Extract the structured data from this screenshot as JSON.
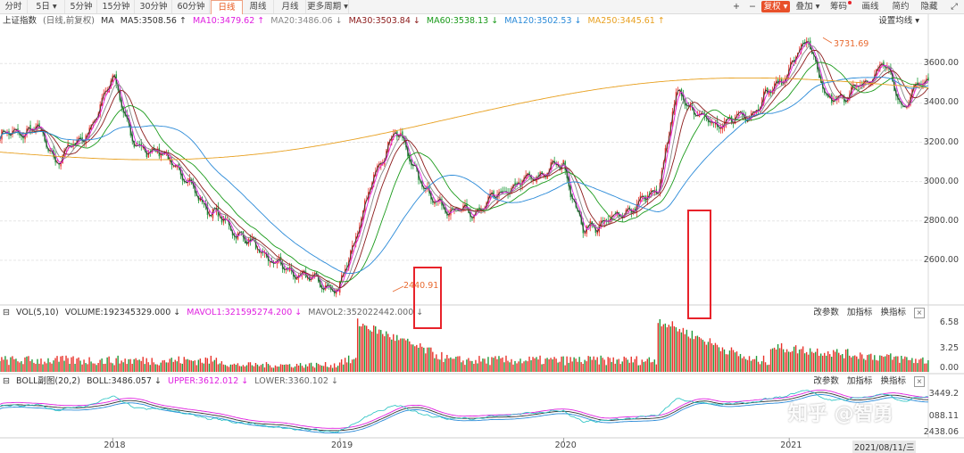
{
  "toolbar": {
    "periods": [
      "分时",
      "5日",
      "5分钟",
      "15分钟",
      "30分钟",
      "60分钟",
      "日线",
      "周线",
      "月线",
      "更多周期"
    ],
    "active_period": "日线",
    "zoom_in": "+",
    "zoom_out": "−",
    "fuquan": "复权",
    "overlay": "叠加",
    "chips": "筹码",
    "draw": "画线",
    "simple": "简约",
    "hide": "隐藏",
    "expand_icon": "expand-icon"
  },
  "ma_bar": {
    "index_name": "上证指数",
    "mode": "(日线,前复权)",
    "ma_label": "MA",
    "ma5": "MA5:3508.56",
    "ma10": "MA10:3479.62",
    "ma20": "MA20:3486.06",
    "ma30": "MA30:3503.84",
    "ma60": "MA60:3538.13",
    "ma120": "MA120:3502.53",
    "ma250": "MA250:3445.61",
    "settings": "设置均线",
    "colors": {
      "ma5": "#333333",
      "ma10": "#e020e0",
      "ma20": "#888888",
      "ma30": "#8b1a1a",
      "ma60": "#1a9a1a",
      "ma120": "#2a8ad8",
      "ma250": "#e8a020"
    }
  },
  "vol_bar": {
    "name": "VOL(5,10)",
    "volume": "VOLUME:192345329.000",
    "mavol1": "MAVOL1:321595274.200",
    "mavol2": "MAVOL2:352022442.000",
    "change_param": "改参数",
    "add_indicator": "加指标",
    "switch_indicator": "换指标",
    "close": "×"
  },
  "boll_bar": {
    "name": "BOLL副图(20,2)",
    "boll": "BOLL:3486.057",
    "upper": "UPPER:3612.012",
    "lower": "LOWER:3360.102",
    "change_param": "改参数",
    "add_indicator": "加指标",
    "switch_indicator": "换指标",
    "close": "×"
  },
  "axes": {
    "main_y": [
      "3600.00",
      "3400.00",
      "3200.00",
      "3000.00",
      "2800.00",
      "2600.00"
    ],
    "vol_y": [
      "6.58",
      "3.25",
      "0.00"
    ],
    "boll_y": [
      "3449.2",
      "088.11",
      "2438.06"
    ],
    "x": [
      "2018",
      "2019",
      "2020",
      "2021"
    ],
    "date_badge": "2021/08/11/三"
  },
  "annotations": {
    "high": "3731.69",
    "low": "2440.91"
  },
  "watermark": "知乎 @智勇",
  "chart_data": {
    "type": "candlestick",
    "symbol": "上证指数",
    "ylim": [
      2400,
      3760
    ],
    "yticks": [
      2600,
      2800,
      3000,
      3200,
      3400,
      3600
    ],
    "xticks": [
      "2018",
      "2019",
      "2020",
      "2021"
    ],
    "approx_close_path": [
      {
        "t": "2017-07",
        "v": 3230
      },
      {
        "t": "2017-09",
        "v": 3270
      },
      {
        "t": "2017-10",
        "v": 3100
      },
      {
        "t": "2017-12",
        "v": 3290
      },
      {
        "t": "2018-01",
        "v": 3560
      },
      {
        "t": "2018-02",
        "v": 3200
      },
      {
        "t": "2018-04",
        "v": 3120
      },
      {
        "t": "2018-06",
        "v": 2870
      },
      {
        "t": "2018-08",
        "v": 2710
      },
      {
        "t": "2018-10",
        "v": 2560
      },
      {
        "t": "2018-12",
        "v": 2490
      },
      {
        "t": "2019-01",
        "v": 2440
      },
      {
        "t": "2019-03",
        "v": 3050
      },
      {
        "t": "2019-04",
        "v": 3270
      },
      {
        "t": "2019-06",
        "v": 2900
      },
      {
        "t": "2019-08",
        "v": 2830
      },
      {
        "t": "2019-10",
        "v": 2960
      },
      {
        "t": "2019-12",
        "v": 3050
      },
      {
        "t": "2020-01",
        "v": 3090
      },
      {
        "t": "2020-02",
        "v": 2750
      },
      {
        "t": "2020-04",
        "v": 2830
      },
      {
        "t": "2020-06",
        "v": 2950
      },
      {
        "t": "2020-07",
        "v": 3450
      },
      {
        "t": "2020-09",
        "v": 3280
      },
      {
        "t": "2020-11",
        "v": 3350
      },
      {
        "t": "2021-01",
        "v": 3570
      },
      {
        "t": "2021-02",
        "v": 3731.69
      },
      {
        "t": "2021-03",
        "v": 3400
      },
      {
        "t": "2021-05",
        "v": 3490
      },
      {
        "t": "2021-06",
        "v": 3610
      },
      {
        "t": "2021-07",
        "v": 3380
      },
      {
        "t": "2021-08",
        "v": 3508
      }
    ],
    "highlight_boxes": [
      "2019-02",
      "2020-07"
    ],
    "volume_ylim": [
      0,
      6.58
    ],
    "boll_ylim": [
      2438.06,
      3449.2
    ]
  }
}
